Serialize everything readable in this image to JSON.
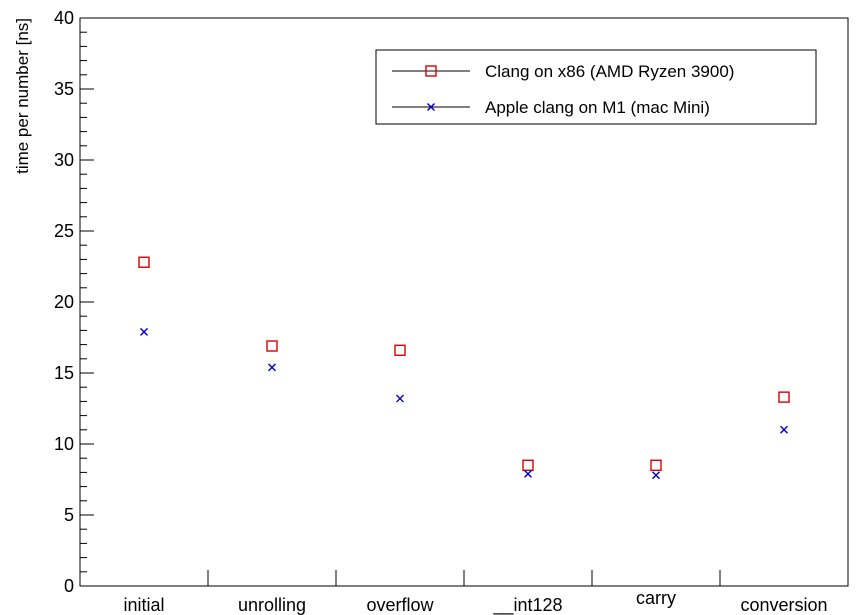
{
  "chart_data": {
    "type": "scatter",
    "title": "",
    "xlabel": "",
    "ylabel": "time per number [ns]",
    "categories": [
      "initial",
      "unrolling",
      "overflow",
      "__int128",
      "carry",
      "conversion"
    ],
    "ylim": [
      0,
      40
    ],
    "y_ticks": [
      "0",
      "5",
      "10",
      "15",
      "20",
      "25",
      "30",
      "35",
      "40"
    ],
    "grid": false,
    "legend_position": "top-right",
    "series": [
      {
        "name": "Clang on x86 (AMD Ryzen 3900)",
        "marker": "open-square",
        "color": "#dd0000",
        "values": [
          22.8,
          16.9,
          16.6,
          8.5,
          8.5,
          13.3
        ]
      },
      {
        "name": "Apple clang on M1 (mac Mini)",
        "marker": "cross",
        "color": "#0000cc",
        "values": [
          17.9,
          15.4,
          13.2,
          7.9,
          7.8,
          11.0
        ]
      }
    ]
  }
}
